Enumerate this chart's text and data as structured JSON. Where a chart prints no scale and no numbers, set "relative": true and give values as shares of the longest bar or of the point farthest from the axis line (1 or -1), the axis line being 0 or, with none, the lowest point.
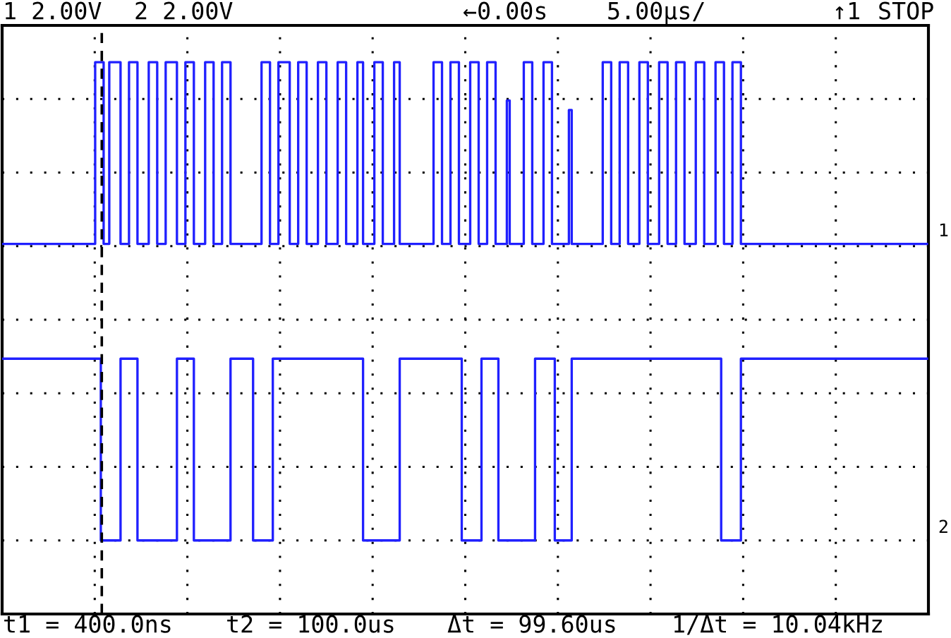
{
  "chart_data": {
    "type": "step",
    "relative": true,
    "tick_labels": false,
    "grid": true,
    "annotations": [
      "1 2.00V",
      "2 2.00V",
      "←0.00s",
      "5.00µs/",
      "↑1",
      "STOP",
      "t1 = 400.0ns",
      "t2 = 100.0us",
      "Δt = 99.60us",
      "1/Δt = 10.04kHz"
    ],
    "categories": [
      null,
      null,
      null,
      null,
      null,
      null,
      null,
      null,
      null,
      null,
      null,
      null,
      null,
      null,
      null,
      null,
      null,
      null,
      null,
      null,
      null,
      null,
      null,
      null,
      null,
      null,
      null,
      null,
      null,
      null,
      null,
      null,
      null,
      null,
      null,
      null,
      null,
      null,
      null,
      null,
      null,
      null,
      null,
      null,
      null,
      null,
      null,
      null,
      null,
      null,
      null,
      null,
      null,
      null,
      null,
      null,
      null,
      null,
      null,
      null,
      null,
      null,
      null,
      null,
      null,
      null,
      null,
      null,
      null,
      null,
      null,
      null,
      null,
      null,
      null,
      null,
      null,
      null,
      null,
      null,
      null,
      null,
      null,
      null,
      null,
      null,
      null,
      null,
      null,
      null,
      null,
      null,
      null,
      null,
      null,
      null,
      null,
      null,
      null,
      null,
      null,
      null,
      null,
      null,
      null,
      null,
      null,
      null,
      null,
      null,
      null,
      null,
      null,
      null,
      null,
      null,
      null,
      null,
      null,
      null,
      null,
      null,
      null,
      null,
      null,
      null,
      null,
      null,
      null,
      null,
      null,
      null,
      null,
      null,
      null,
      null,
      null,
      null,
      null,
      null,
      null,
      null,
      null,
      null,
      null,
      null,
      null,
      null,
      null,
      null,
      null,
      null,
      null,
      null,
      null,
      null,
      null,
      null,
      null,
      null,
      null,
      null,
      null,
      null,
      null,
      null,
      null,
      null,
      null,
      null,
      null,
      null,
      null,
      null,
      null,
      null,
      null,
      null,
      null,
      null,
      null,
      null,
      null,
      null,
      null,
      null,
      null,
      null,
      null,
      null,
      null,
      null,
      null,
      null,
      null,
      null,
      null,
      null,
      null,
      null,
      null,
      null,
      null,
      null,
      null,
      null,
      null,
      null,
      null,
      null,
      null,
      null,
      null,
      null,
      null,
      null,
      null,
      null,
      null,
      null,
      null,
      null,
      null,
      null,
      null,
      null,
      null,
      null,
      null,
      null,
      null,
      null,
      null,
      null,
      null,
      null,
      null,
      null,
      null,
      null,
      null,
      null,
      null,
      null,
      null,
      null,
      null,
      null,
      null,
      null,
      null,
      null,
      null,
      null,
      null,
      null,
      null,
      null,
      null,
      null,
      null,
      null,
      null,
      null,
      null,
      null,
      null,
      null,
      null,
      null,
      null,
      null,
      null,
      null,
      null,
      null,
      null,
      null,
      null,
      null,
      null,
      null,
      null,
      null,
      null,
      null,
      null,
      null,
      null,
      null,
      null,
      null,
      null,
      null,
      null,
      null,
      null,
      null,
      null,
      null,
      null,
      null,
      null,
      null,
      null,
      null,
      null,
      null,
      null,
      null,
      null,
      null,
      null,
      null,
      null,
      null,
      null,
      null,
      null,
      null,
      null,
      null,
      null,
      null,
      null,
      null,
      null,
      null,
      null
    ],
    "series": [
      {
        "name": "1",
        "color": "#2020ff",
        "values": [
          0.62,
          0.62,
          0.62,
          0.62,
          0.62,
          0.62,
          0.62,
          0.62,
          0.62,
          0.62,
          0.62,
          0.62,
          0.62,
          0.62,
          0.62,
          0.62,
          0.62,
          0.62,
          0.62,
          0.62,
          0.62,
          0.62,
          0.62,
          0.62,
          0.62,
          0.62,
          0.62,
          0.62,
          0.62,
          0.62,
          0.62,
          0.62,
          0.62,
          1,
          1,
          1,
          0.62,
          0.62,
          1,
          1,
          1,
          1,
          0.62,
          0.62,
          0.62,
          1,
          1,
          1,
          0.62,
          0.62,
          0.62,
          0.62,
          1,
          1,
          1,
          0.62,
          0.62,
          0.62,
          1,
          1,
          1,
          1,
          0.62,
          0.62,
          0.62,
          1,
          1,
          1,
          0.62,
          0.62,
          0.62,
          0.62,
          1,
          1,
          1,
          0.62,
          0.62,
          0.62,
          1,
          1,
          1,
          0.62,
          0.62,
          0.62,
          0.62,
          0.62,
          0.62,
          0.62,
          0.62,
          0.62,
          0.62,
          0.62,
          1,
          1,
          1,
          0.62,
          0.62,
          0.62,
          1,
          1,
          1,
          1,
          0.62,
          0.62,
          0.62,
          1,
          1,
          1,
          0.62,
          0.62,
          0.62,
          0.62,
          1,
          1,
          1,
          0.62,
          0.62,
          0.62,
          0.62,
          1,
          1,
          1,
          0.62,
          0.62,
          0.62,
          0.62,
          1,
          1,
          0.62,
          0.62,
          0.62,
          0.62,
          1,
          1,
          1,
          0.62,
          0.62,
          0.62,
          0.62,
          1,
          1,
          0.62,
          0.62,
          0.62,
          0.62,
          0.62,
          0.62,
          0.62,
          0.62,
          0.62,
          0.62,
          0.62,
          0.62,
          1,
          1,
          1,
          0.62,
          0.62,
          0.62,
          1,
          1,
          1,
          0.62,
          0.62,
          0.62,
          0.62,
          1,
          1,
          1,
          0.62,
          0.62,
          0.62,
          1,
          1,
          1,
          0.62,
          0.62,
          0.62,
          0.62,
          0.92,
          0.62,
          0.62,
          0.62,
          0.62,
          0.62,
          1,
          1,
          1,
          0.62,
          0.62,
          0.62,
          0.62,
          1,
          1,
          1,
          0.62,
          0.62,
          0.62,
          0.62,
          0.62,
          0.62,
          0.9,
          0.62,
          0.62,
          0.62,
          0.62,
          0.62,
          0.62,
          0.62,
          0.62,
          0.62,
          0.62,
          0.62,
          1,
          1,
          1,
          0.62,
          0.62,
          0.62,
          1,
          1,
          1,
          0.62,
          0.62,
          0.62,
          0.62,
          1,
          1,
          1,
          0.62,
          0.62,
          0.62,
          0.62,
          1,
          1,
          1,
          0.62,
          0.62,
          0.62,
          1,
          1,
          1,
          0.62,
          0.62,
          0.62,
          0.62,
          1,
          1,
          1,
          0.62,
          0.62,
          0.62,
          0.62,
          1,
          1,
          1,
          0.62,
          0.62,
          0.62,
          1,
          1,
          1,
          0.62,
          0.62,
          0.62,
          0.62,
          0.62,
          0.62,
          0.62,
          0.62,
          0.62,
          0.62,
          0.62,
          0.62,
          0.62,
          0.62,
          0.62,
          0.62,
          0.62,
          0.62,
          0.62,
          0.62,
          0.62,
          0.62,
          0.62,
          0.62,
          0.62,
          0.62,
          0.62,
          0.62,
          0.62,
          0.62,
          0.62,
          0.62,
          0.62,
          0.62,
          0.62,
          0.62,
          0.62,
          0.62,
          0.62,
          0.62,
          0.62,
          0.62,
          0.62,
          0.62,
          0.62,
          0.62,
          0.62,
          0.62,
          0.62,
          0.62,
          0.62,
          0.62,
          0.62,
          0.62,
          0.62,
          0.62,
          0.62,
          0.62,
          0.62,
          0.62,
          0.62,
          0.62,
          0.62,
          0.62,
          0.62,
          0.62,
          0.62
        ]
      },
      {
        "name": "2",
        "color": "#2020ff",
        "values": [
          0.38,
          0.38,
          0.38,
          0.38,
          0.38,
          0.38,
          0.38,
          0.38,
          0.38,
          0.38,
          0.38,
          0.38,
          0.38,
          0.38,
          0.38,
          0.38,
          0.38,
          0.38,
          0.38,
          0.38,
          0.38,
          0.38,
          0.38,
          0.38,
          0.38,
          0.38,
          0.38,
          0.38,
          0.38,
          0.38,
          0.38,
          0.38,
          0.38,
          0.38,
          0.38,
          0,
          0,
          0,
          0,
          0,
          0,
          0,
          0.38,
          0.38,
          0.38,
          0.38,
          0.38,
          0.38,
          0,
          0,
          0,
          0,
          0,
          0,
          0,
          0,
          0,
          0,
          0,
          0,
          0,
          0,
          0.38,
          0.38,
          0.38,
          0.38,
          0.38,
          0.38,
          0,
          0,
          0,
          0,
          0,
          0,
          0,
          0,
          0,
          0,
          0,
          0,
          0,
          0.38,
          0.38,
          0.38,
          0.38,
          0.38,
          0.38,
          0.38,
          0.38,
          0,
          0,
          0,
          0,
          0,
          0,
          0,
          0.38,
          0.38,
          0.38,
          0.38,
          0.38,
          0.38,
          0.38,
          0.38,
          0.38,
          0.38,
          0.38,
          0.38,
          0.38,
          0.38,
          0.38,
          0.38,
          0.38,
          0.38,
          0.38,
          0.38,
          0.38,
          0.38,
          0.38,
          0.38,
          0.38,
          0.38,
          0.38,
          0.38,
          0.38,
          0.38,
          0.38,
          0.38,
          0,
          0,
          0,
          0,
          0,
          0,
          0,
          0,
          0,
          0,
          0,
          0,
          0,
          0.38,
          0.38,
          0.38,
          0.38,
          0.38,
          0.38,
          0.38,
          0.38,
          0.38,
          0.38,
          0.38,
          0.38,
          0.38,
          0.38,
          0.38,
          0.38,
          0.38,
          0.38,
          0.38,
          0.38,
          0.38,
          0.38,
          0,
          0,
          0,
          0,
          0,
          0,
          0,
          0.38,
          0.38,
          0.38,
          0.38,
          0.38,
          0.38,
          0,
          0,
          0,
          0,
          0,
          0,
          0,
          0,
          0,
          0,
          0,
          0,
          0,
          0.38,
          0.38,
          0.38,
          0.38,
          0.38,
          0.38,
          0.38,
          0,
          0,
          0,
          0,
          0,
          0,
          0.38,
          0.38,
          0.38,
          0.38,
          0.38,
          0.38,
          0.38,
          0.38,
          0.38,
          0.38,
          0.38,
          0.38,
          0.38,
          0.38,
          0.38,
          0.38,
          0.38,
          0.38,
          0.38,
          0.38,
          0.38,
          0.38,
          0.38,
          0.38,
          0.38,
          0.38,
          0.38,
          0.38,
          0.38,
          0.38,
          0.38,
          0.38,
          0.38,
          0.38,
          0.38,
          0.38,
          0.38,
          0.38,
          0.38,
          0.38,
          0.38,
          0.38,
          0.38,
          0.38,
          0.38,
          0.38,
          0.38,
          0.38,
          0.38,
          0.38,
          0.38,
          0.38,
          0.38,
          0,
          0,
          0,
          0,
          0,
          0,
          0,
          0.38,
          0.38,
          0.38,
          0.38,
          0.38,
          0.38,
          0.38,
          0.38,
          0.38,
          0.38,
          0.38,
          0.38,
          0.38,
          0.38,
          0.38,
          0.38,
          0.38,
          0.38,
          0.38,
          0.38,
          0.38,
          0.38,
          0.38,
          0.38,
          0.38,
          0.38,
          0.38,
          0.38,
          0.38,
          0.38,
          0.38,
          0.38,
          0.38,
          0.38,
          0.38,
          0.38,
          0.38,
          0.38,
          0.38,
          0.38,
          0.38,
          0.38,
          0.38,
          0.38,
          0.38,
          0.38,
          0.38,
          0.38,
          0.38,
          0.38,
          0.38,
          0.38,
          0.38,
          0.38,
          0.38,
          0.38,
          0.38,
          0.38,
          0.38,
          0.38,
          0.38,
          0.38,
          0.38,
          0.38,
          0.38,
          0.38,
          0.38
        ]
      }
    ]
  }
}
